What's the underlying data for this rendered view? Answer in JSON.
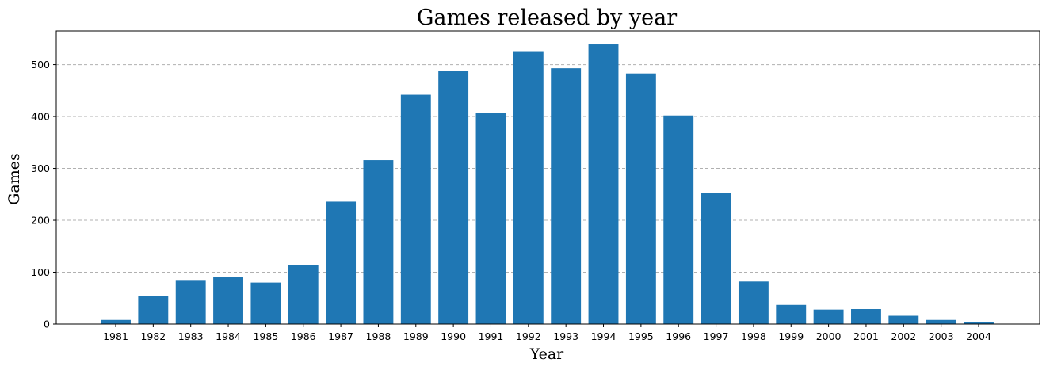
{
  "chart_data": {
    "type": "bar",
    "title": "Games released by year",
    "xlabel": "Year",
    "ylabel": "Games",
    "categories": [
      "1981",
      "1982",
      "1983",
      "1984",
      "1985",
      "1986",
      "1987",
      "1988",
      "1989",
      "1990",
      "1991",
      "1992",
      "1993",
      "1994",
      "1995",
      "1996",
      "1997",
      "1998",
      "1999",
      "2000",
      "2001",
      "2002",
      "2003",
      "2004"
    ],
    "values": [
      8,
      54,
      85,
      91,
      80,
      114,
      236,
      316,
      442,
      488,
      407,
      526,
      493,
      539,
      483,
      402,
      253,
      82,
      37,
      28,
      29,
      16,
      8,
      4
    ],
    "ylim": [
      0,
      565
    ],
    "yticks": [
      0,
      100,
      200,
      300,
      400,
      500
    ],
    "grid": "horizontal dashed",
    "bar_color": "#1f77b4"
  }
}
